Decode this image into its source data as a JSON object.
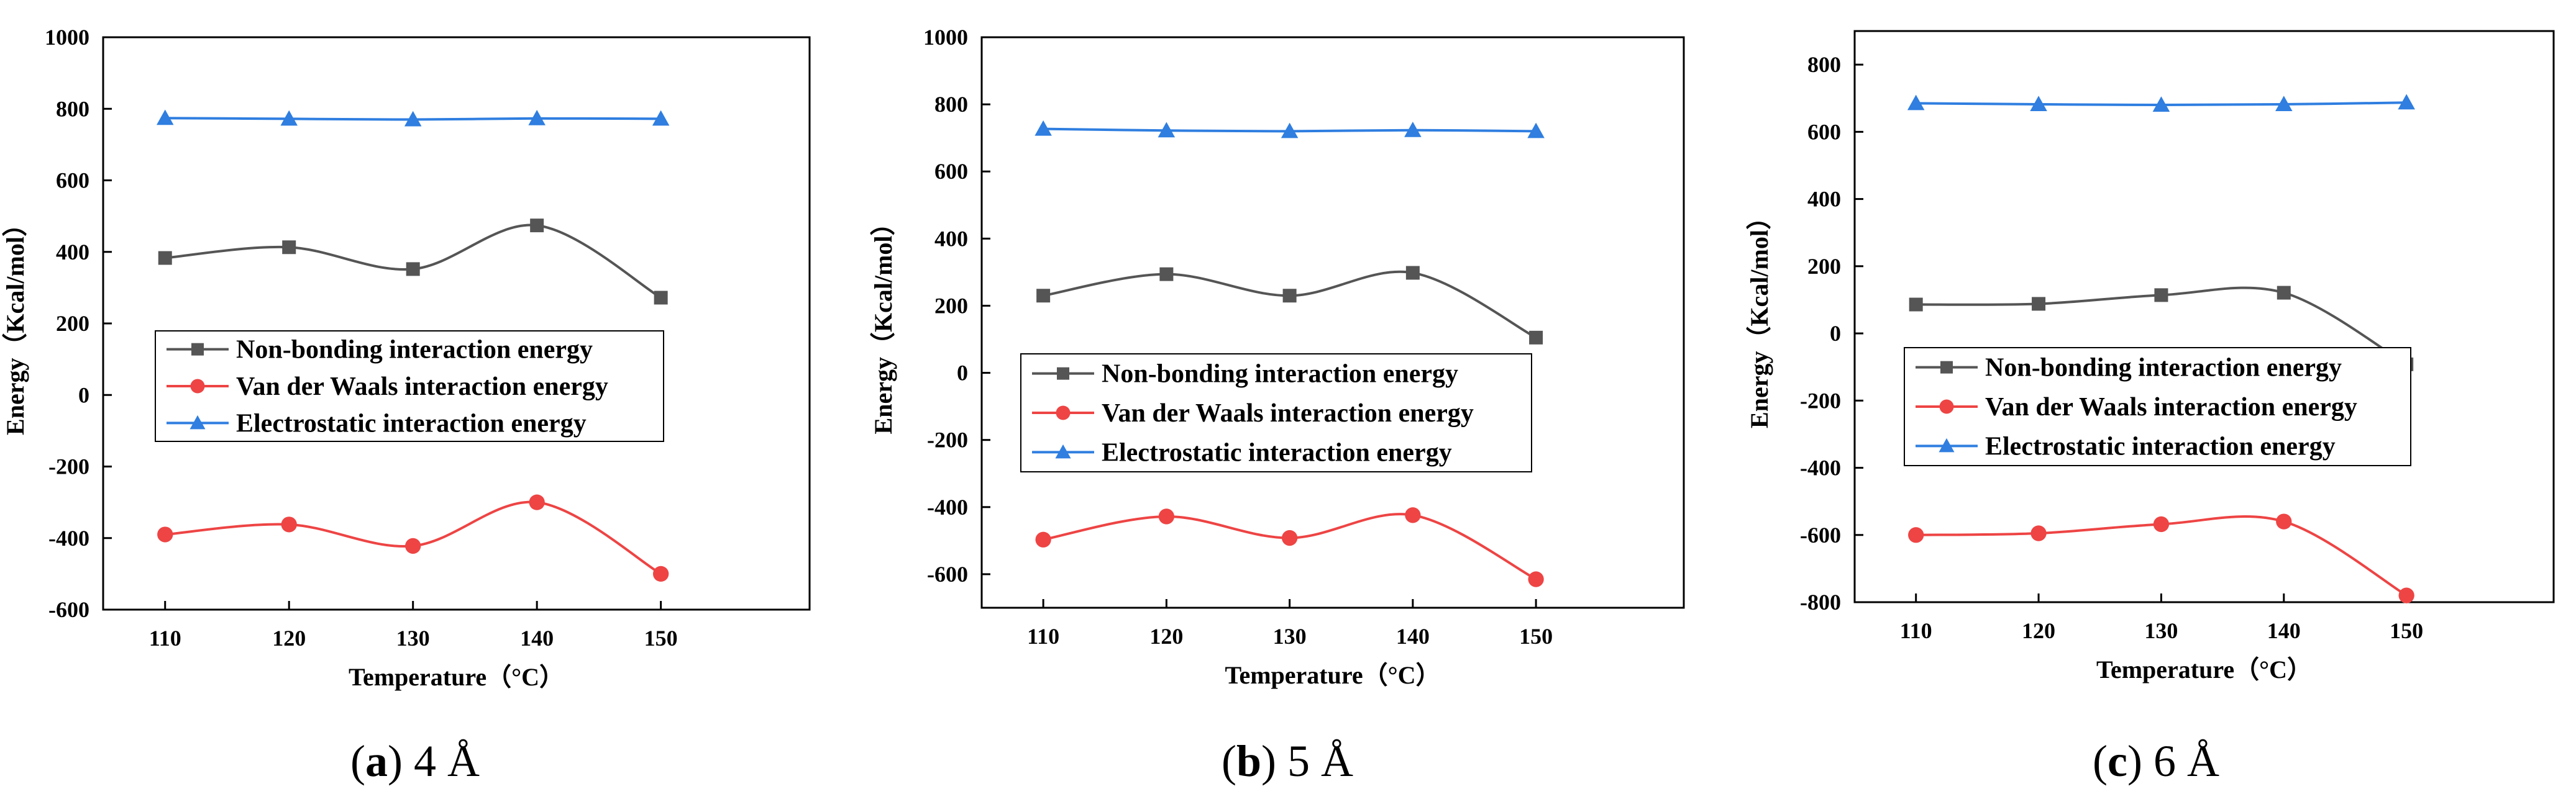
{
  "figure": {
    "captions": [
      {
        "open": "(",
        "letter": "a",
        "close": ")",
        "rest": " 4 Å"
      },
      {
        "open": "(",
        "letter": "b",
        "close": ")",
        "rest": " 5 Å"
      },
      {
        "open": "(",
        "letter": "c",
        "close": ")",
        "rest": " 6 Å"
      }
    ]
  },
  "colors": {
    "nonbonding": "#555555",
    "vdw": "#ee4444",
    "electrostatic": "#2f7ee0",
    "axis": "#000000"
  },
  "chart_data": [
    {
      "type": "line",
      "xlabel": "Temperature（°C）",
      "ylabel": "Energy（Kcal/mol）",
      "x": [
        110,
        120,
        130,
        140,
        150
      ],
      "xlim": [
        105,
        162
      ],
      "ylim": [
        -600,
        1000
      ],
      "yticks": [
        -600,
        -400,
        -200,
        0,
        200,
        400,
        600,
        800,
        1000
      ],
      "legend_position": "middle-left",
      "series": [
        {
          "name": "Non-bonding interaction energy",
          "marker": "square",
          "color": "#555555",
          "values": [
            383,
            413,
            352,
            474,
            272
          ]
        },
        {
          "name": "Van der Waals interaction energy",
          "marker": "circle",
          "color": "#ee4444",
          "values": [
            -390,
            -362,
            -422,
            -300,
            -500
          ]
        },
        {
          "name": "Electrostatic interaction energy",
          "marker": "triangle",
          "color": "#2f7ee0",
          "values": [
            774,
            772,
            770,
            773,
            772
          ]
        }
      ]
    },
    {
      "type": "line",
      "xlabel": "Temperature（°C）",
      "ylabel": "Energy（Kcal/mol）",
      "x": [
        110,
        120,
        130,
        140,
        150
      ],
      "xlim": [
        105,
        162
      ],
      "ylim": [
        -700,
        1000
      ],
      "yticks": [
        -600,
        -400,
        -200,
        0,
        200,
        400,
        600,
        800,
        1000
      ],
      "legend_position": "middle-left",
      "series": [
        {
          "name": "Non-bonding interaction energy",
          "marker": "square",
          "color": "#555555",
          "values": [
            230,
            294,
            230,
            298,
            105
          ]
        },
        {
          "name": "Van der Waals interaction energy",
          "marker": "circle",
          "color": "#ee4444",
          "values": [
            -497,
            -428,
            -492,
            -424,
            -615
          ]
        },
        {
          "name": "Electrostatic interaction energy",
          "marker": "triangle",
          "color": "#2f7ee0",
          "values": [
            727,
            722,
            720,
            723,
            720
          ]
        }
      ]
    },
    {
      "type": "line",
      "xlabel": "Temperature（°C）",
      "ylabel": "Energy（Kcal/mol）",
      "x": [
        110,
        120,
        130,
        140,
        150
      ],
      "xlim": [
        105,
        162
      ],
      "ylim": [
        -800,
        900
      ],
      "yticks": [
        -800,
        -600,
        -400,
        -200,
        0,
        200,
        400,
        600,
        800
      ],
      "legend_position": "middle-left",
      "series": [
        {
          "name": "Non-bonding interaction energy",
          "marker": "square",
          "color": "#555555",
          "values": [
            86,
            88,
            114,
            121,
            -92
          ]
        },
        {
          "name": "Van der Waals interaction energy",
          "marker": "circle",
          "color": "#ee4444",
          "values": [
            -600,
            -595,
            -568,
            -560,
            -780
          ]
        },
        {
          "name": "Electrostatic interaction energy",
          "marker": "triangle",
          "color": "#2f7ee0",
          "values": [
            685,
            682,
            680,
            682,
            687
          ]
        }
      ]
    }
  ]
}
